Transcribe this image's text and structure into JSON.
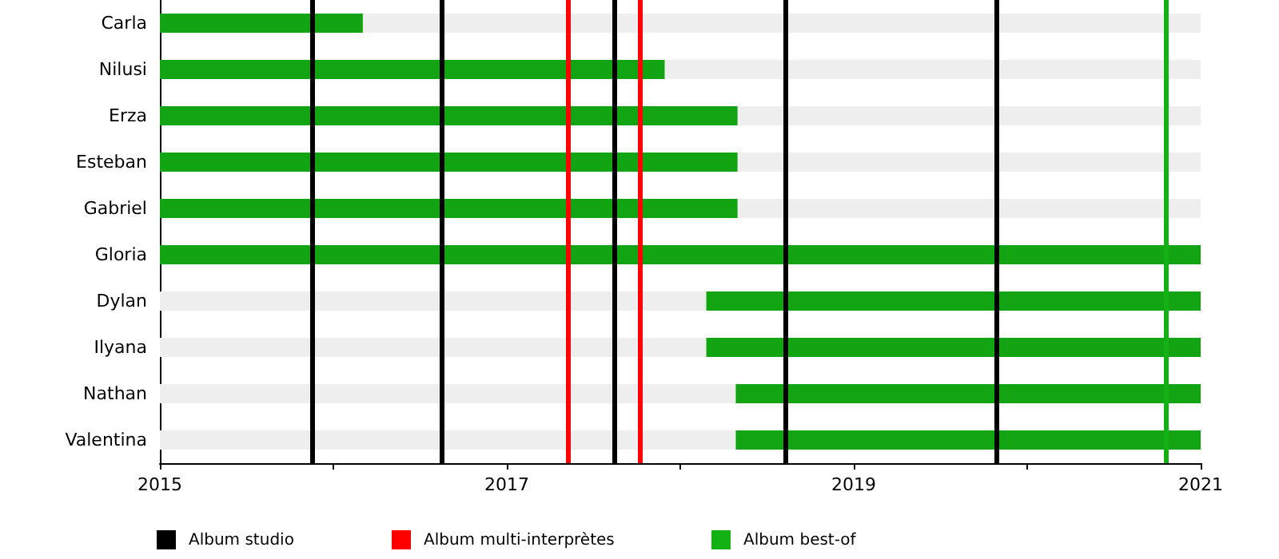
{
  "chart_data": {
    "type": "bar",
    "orientation": "horizontal",
    "categories": [
      "Carla",
      "Nilusi",
      "Erza",
      "Esteban",
      "Gabriel",
      "Gloria",
      "Dylan",
      "Ilyana",
      "Nathan",
      "Valentina"
    ],
    "base": [
      2015,
      2015,
      2015,
      2015,
      2015,
      2015,
      2018.15,
      2018.15,
      2018.32,
      2018.32
    ],
    "values": [
      1.17,
      2.91,
      3.33,
      3.33,
      3.33,
      6,
      2.85,
      2.85,
      2.68,
      2.68
    ],
    "color": "#13a413",
    "xlim": [
      2015,
      2021
    ],
    "xticks": [
      2015,
      {
        "value": 2016,
        "label": null
      },
      2017,
      {
        "value": 2018,
        "label": null
      },
      2019,
      {
        "value": 2020,
        "label": null
      },
      2021
    ],
    "ref_lines": [
      {
        "axis": "x",
        "value": 2015.88,
        "label": "Album studio",
        "color": "#000000"
      },
      {
        "axis": "x",
        "value": 2016.62,
        "color": "#000000"
      },
      {
        "axis": "x",
        "value": 2017.62,
        "color": "#000000"
      },
      {
        "axis": "x",
        "value": 2018.61,
        "color": "#000000"
      },
      {
        "axis": "x",
        "value": 2019.82,
        "color": "#000000"
      },
      {
        "axis": "x",
        "value": 2017.35,
        "label": "Album multi-interprètes",
        "color": "#ff0000"
      },
      {
        "axis": "x",
        "value": 2017.77,
        "color": "#ff0000"
      },
      {
        "axis": "x",
        "value": 2020.8,
        "label": "Album best-of",
        "color": "#13b113"
      }
    ],
    "legend": "bottom",
    "grid": false
  }
}
